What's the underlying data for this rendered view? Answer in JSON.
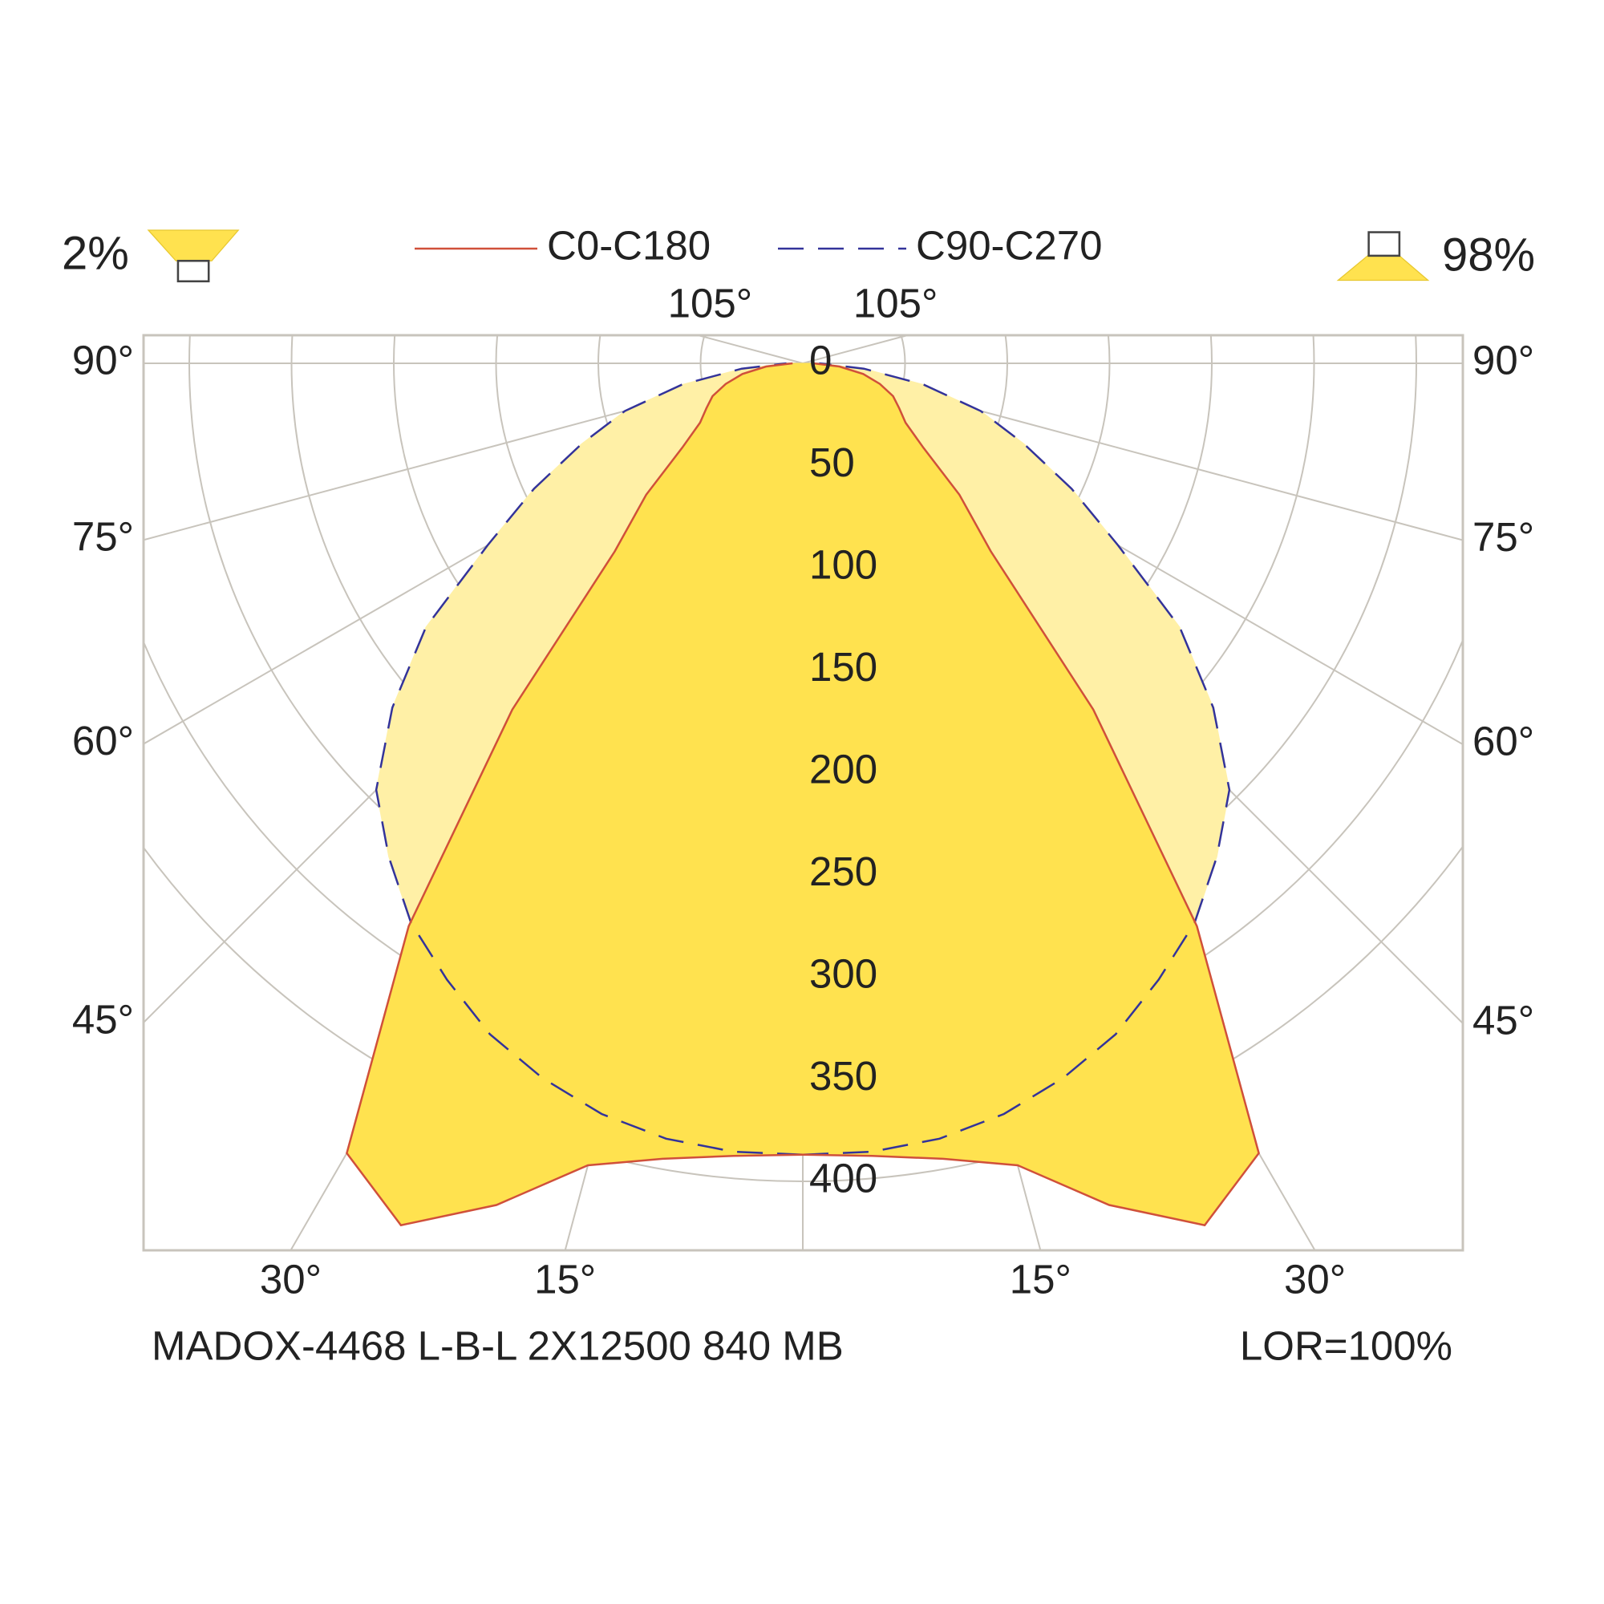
{
  "chart_data": {
    "type": "polar",
    "downward_share": "98%",
    "upward_share": "2%",
    "footer_left": "MADOX-4468 L-B-L 2X12500 840 MB",
    "footer_right": "LOR=100%",
    "x": [
      0,
      5,
      10,
      15,
      20,
      25,
      30,
      35,
      40,
      45,
      50,
      55,
      60,
      65,
      70,
      75,
      80,
      85,
      90
    ],
    "series": [
      {
        "name": "C90-C270",
        "color": "#33339a",
        "fill": "#fff0a6",
        "dashed": true,
        "values": [
          387,
          387,
          385,
          380,
          372,
          362,
          348,
          334,
          315,
          295,
          262,
          225,
          178,
          145,
          115,
          90,
          60,
          30,
          8
        ]
      },
      {
        "name": "C0-C180",
        "color": "#d0503a",
        "fill": "#ffe24f",
        "dashed": false,
        "values": [
          387,
          389,
          395,
          406,
          438,
          465,
          446,
          336,
          221,
          130,
          100,
          72,
          58,
          52,
          47,
          39,
          30,
          18,
          5
        ]
      }
    ],
    "rlim": [
      0,
      400
    ],
    "rticks": [
      0,
      50,
      100,
      150,
      200,
      250,
      300,
      350,
      400
    ],
    "angle_ticks": [
      {
        "value": 15,
        "label": "15°"
      },
      {
        "value": 30,
        "label": "30°"
      },
      {
        "value": 45,
        "label": "45°"
      },
      {
        "value": 60,
        "label": "60°"
      },
      {
        "value": 75,
        "label": "75°"
      },
      {
        "value": 90,
        "label": "90°"
      },
      {
        "value": 105,
        "label": "105°"
      }
    ],
    "grid": true
  }
}
